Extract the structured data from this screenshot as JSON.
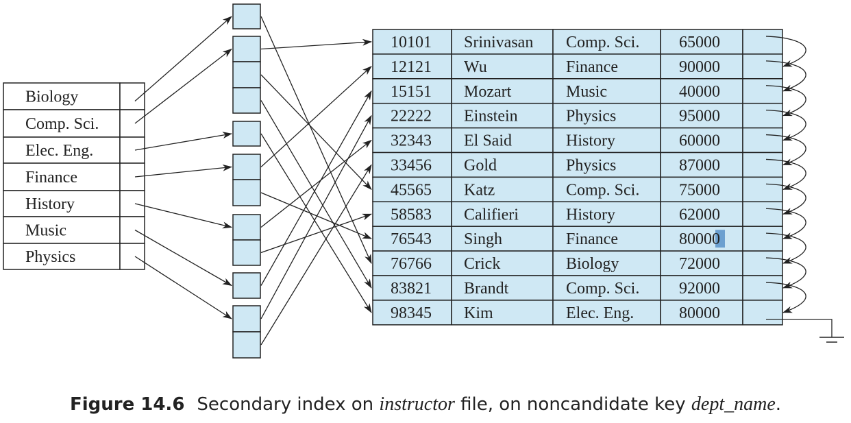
{
  "figure": {
    "label": "Figure 14.6",
    "caption_parts": [
      "Secondary index on ",
      "instructor",
      " file, on noncandidate key ",
      "dept_name",
      "."
    ]
  },
  "colors": {
    "cell_fill": "#cfe8f4",
    "stroke": "#222222",
    "selection": "#5b93c9"
  },
  "index": {
    "entries": [
      "Biology",
      "Comp. Sci.",
      "Elec. Eng.",
      "Finance",
      "History",
      "Music",
      "Physics"
    ]
  },
  "buckets": [
    {
      "name": "bucket-biology",
      "slots": 1
    },
    {
      "name": "bucket-comp-sci",
      "slots": 3
    },
    {
      "name": "bucket-elec-eng",
      "slots": 1
    },
    {
      "name": "bucket-finance",
      "slots": 2
    },
    {
      "name": "bucket-history",
      "slots": 2
    },
    {
      "name": "bucket-music",
      "slots": 1
    },
    {
      "name": "bucket-physics",
      "slots": 2
    }
  ],
  "instructor": {
    "rows": [
      [
        "10101",
        "Srinivasan",
        "Comp. Sci.",
        "65000"
      ],
      [
        "12121",
        "Wu",
        "Finance",
        "90000"
      ],
      [
        "15151",
        "Mozart",
        "Music",
        "40000"
      ],
      [
        "22222",
        "Einstein",
        "Physics",
        "95000"
      ],
      [
        "32343",
        "El Said",
        "History",
        "60000"
      ],
      [
        "33456",
        "Gold",
        "Physics",
        "87000"
      ],
      [
        "45565",
        "Katz",
        "Comp. Sci.",
        "75000"
      ],
      [
        "58583",
        "Califieri",
        "History",
        "62000"
      ],
      [
        "76543",
        "Singh",
        "Finance",
        "80000"
      ],
      [
        "76766",
        "Crick",
        "Biology",
        "72000"
      ],
      [
        "83821",
        "Brandt",
        "Comp. Sci.",
        "92000"
      ],
      [
        "98345",
        "Kim",
        "Elec. Eng.",
        "80000"
      ]
    ]
  },
  "pointers": {
    "index_to_bucket": [
      [
        0,
        0
      ],
      [
        1,
        1
      ],
      [
        2,
        2
      ],
      [
        3,
        3
      ],
      [
        4,
        4
      ],
      [
        5,
        5
      ],
      [
        6,
        6
      ]
    ],
    "bucket_to_record": [
      {
        "bucket": 0,
        "slot": 0,
        "row": 9
      },
      {
        "bucket": 1,
        "slot": 0,
        "row": 0
      },
      {
        "bucket": 1,
        "slot": 1,
        "row": 6
      },
      {
        "bucket": 1,
        "slot": 2,
        "row": 10
      },
      {
        "bucket": 2,
        "slot": 0,
        "row": 11
      },
      {
        "bucket": 3,
        "slot": 0,
        "row": 1
      },
      {
        "bucket": 3,
        "slot": 1,
        "row": 8
      },
      {
        "bucket": 4,
        "slot": 0,
        "row": 4
      },
      {
        "bucket": 4,
        "slot": 1,
        "row": 7
      },
      {
        "bucket": 5,
        "slot": 0,
        "row": 2
      },
      {
        "bucket": 6,
        "slot": 0,
        "row": 3
      },
      {
        "bucket": 6,
        "slot": 1,
        "row": 5
      }
    ]
  }
}
